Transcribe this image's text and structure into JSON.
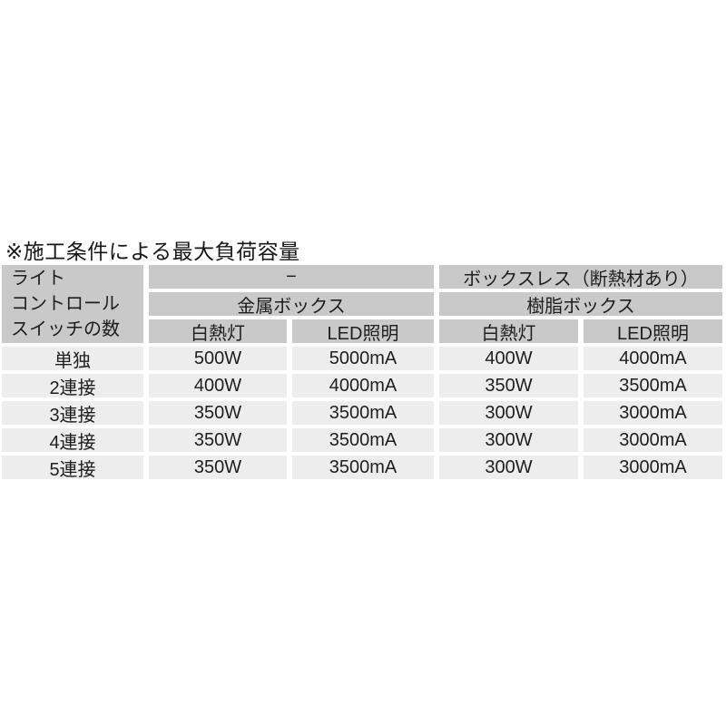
{
  "title": "※施工条件による最大負荷容量",
  "table": {
    "corner_lines": [
      "ライト",
      "コントロール",
      "スイッチの数"
    ],
    "col_groups": [
      {
        "condition": "−",
        "box": "金属ボックス"
      },
      {
        "condition": "ボックスレス（断熱材あり）",
        "box": "樹脂ボックス"
      }
    ],
    "sub_headers": [
      "白熱灯",
      "LED照明",
      "白熱灯",
      "LED照明"
    ],
    "rows": [
      {
        "label": "単独",
        "values": [
          "500W",
          "5000mA",
          "400W",
          "4000mA"
        ]
      },
      {
        "label": "2連接",
        "values": [
          "400W",
          "4000mA",
          "350W",
          "3500mA"
        ]
      },
      {
        "label": "3連接",
        "values": [
          "350W",
          "3500mA",
          "300W",
          "3000mA"
        ]
      },
      {
        "label": "4連接",
        "values": [
          "350W",
          "3500mA",
          "300W",
          "3000mA"
        ]
      },
      {
        "label": "5連接",
        "values": [
          "350W",
          "3500mA",
          "300W",
          "3000mA"
        ]
      }
    ]
  },
  "colors": {
    "header_bg": "#c9c9c9",
    "data_row_bg": "#ededed",
    "text": "#1e1e1e"
  }
}
